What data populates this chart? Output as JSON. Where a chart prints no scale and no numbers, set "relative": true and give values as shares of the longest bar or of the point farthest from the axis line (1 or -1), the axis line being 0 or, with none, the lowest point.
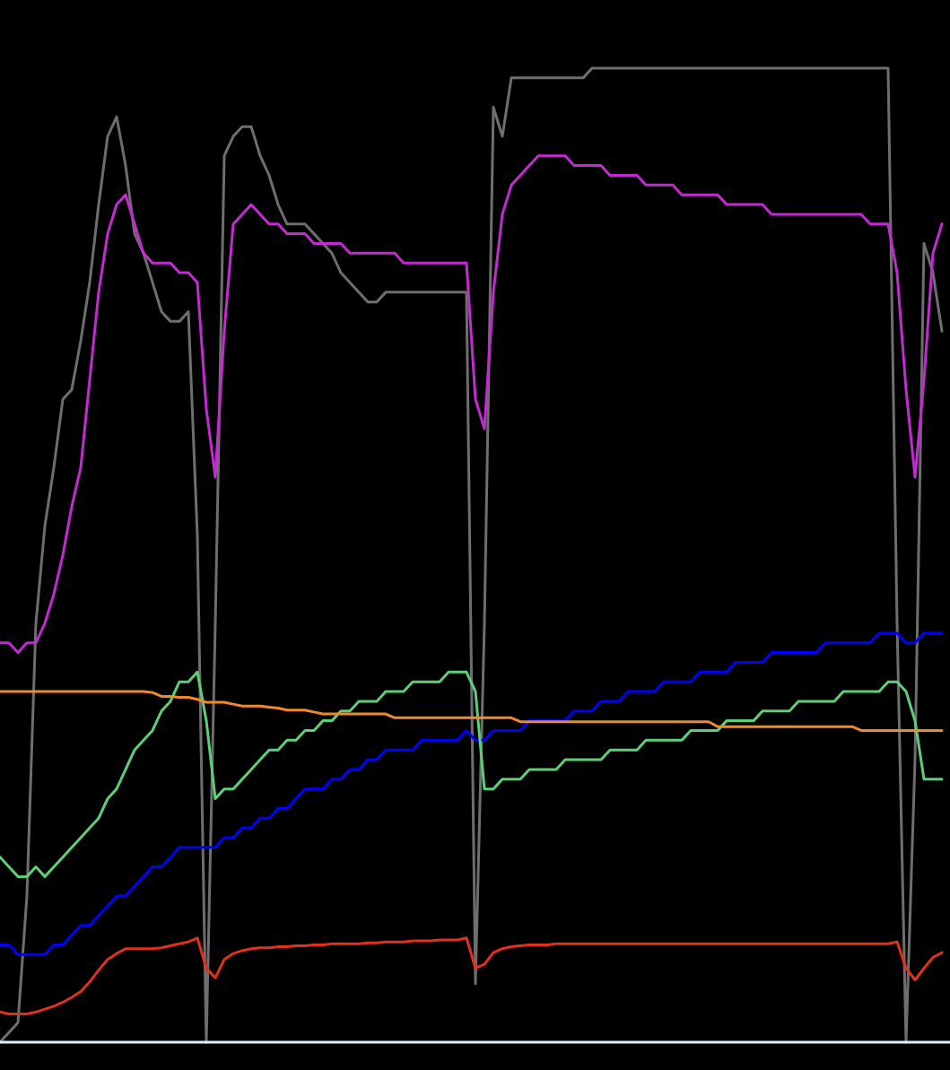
{
  "chart_data": {
    "type": "line",
    "relative": true,
    "categories": [
      null,
      null,
      null,
      null,
      null,
      null,
      null,
      null,
      null,
      null,
      null,
      null,
      null,
      null,
      null,
      null,
      null,
      null,
      null,
      null,
      null,
      null,
      null,
      null,
      null,
      null,
      null,
      null,
      null,
      null,
      null,
      null,
      null,
      null,
      null,
      null,
      null,
      null,
      null,
      null,
      null,
      null,
      null,
      null,
      null,
      null,
      null,
      null,
      null,
      null,
      null,
      null,
      null,
      null,
      null,
      null,
      null,
      null,
      null,
      null,
      null,
      null,
      null,
      null,
      null,
      null,
      null,
      null,
      null,
      null,
      null,
      null,
      null,
      null,
      null,
      null,
      null,
      null,
      null,
      null,
      null,
      null,
      null,
      null,
      null,
      null,
      null,
      null,
      null,
      null,
      null,
      null,
      null,
      null,
      null,
      null,
      null,
      null,
      null,
      null,
      null,
      null,
      null,
      null,
      null,
      null
    ],
    "series": [
      {
        "color": "#6e6e6e",
        "values": [
          0.0,
          0.01,
          0.02,
          0.15,
          0.43,
          0.53,
          0.59,
          0.66,
          0.67,
          0.72,
          0.78,
          0.86,
          0.93,
          0.95,
          0.9,
          0.83,
          0.81,
          0.78,
          0.75,
          0.74,
          0.74,
          0.75,
          0.52,
          0.0,
          0.43,
          0.91,
          0.93,
          0.94,
          0.94,
          0.91,
          0.89,
          0.86,
          0.84,
          0.84,
          0.84,
          0.83,
          0.82,
          0.81,
          0.79,
          0.78,
          0.77,
          0.76,
          0.76,
          0.77,
          0.77,
          0.77,
          0.77,
          0.77,
          0.77,
          0.77,
          0.77,
          0.77,
          0.77,
          0.06,
          0.43,
          0.96,
          0.93,
          0.99,
          0.99,
          0.99,
          0.99,
          0.99,
          0.99,
          0.99,
          0.99,
          0.99,
          1.0,
          1.0,
          1.0,
          1.0,
          1.0,
          1.0,
          1.0,
          1.0,
          1.0,
          1.0,
          1.0,
          1.0,
          1.0,
          1.0,
          1.0,
          1.0,
          1.0,
          1.0,
          1.0,
          1.0,
          1.0,
          1.0,
          1.0,
          1.0,
          1.0,
          1.0,
          1.0,
          1.0,
          1.0,
          1.0,
          1.0,
          1.0,
          1.0,
          1.0,
          0.43,
          0.0,
          0.29,
          0.82,
          0.79,
          0.73
        ]
      },
      {
        "color": "#c42ad2",
        "values": [
          0.41,
          0.41,
          0.4,
          0.41,
          0.41,
          0.43,
          0.46,
          0.5,
          0.55,
          0.59,
          0.68,
          0.77,
          0.83,
          0.86,
          0.87,
          0.84,
          0.81,
          0.8,
          0.8,
          0.8,
          0.79,
          0.79,
          0.78,
          0.65,
          0.58,
          0.73,
          0.84,
          0.85,
          0.86,
          0.85,
          0.84,
          0.84,
          0.83,
          0.83,
          0.83,
          0.82,
          0.82,
          0.82,
          0.82,
          0.81,
          0.81,
          0.81,
          0.81,
          0.81,
          0.81,
          0.8,
          0.8,
          0.8,
          0.8,
          0.8,
          0.8,
          0.8,
          0.8,
          0.66,
          0.63,
          0.77,
          0.85,
          0.88,
          0.89,
          0.9,
          0.91,
          0.91,
          0.91,
          0.91,
          0.9,
          0.9,
          0.9,
          0.9,
          0.89,
          0.89,
          0.89,
          0.89,
          0.88,
          0.88,
          0.88,
          0.88,
          0.87,
          0.87,
          0.87,
          0.87,
          0.87,
          0.86,
          0.86,
          0.86,
          0.86,
          0.86,
          0.85,
          0.85,
          0.85,
          0.85,
          0.85,
          0.85,
          0.85,
          0.85,
          0.85,
          0.85,
          0.85,
          0.84,
          0.84,
          0.84,
          0.79,
          0.67,
          0.58,
          0.68,
          0.81,
          0.84
        ]
      },
      {
        "color": "#0000ff",
        "values": [
          0.1,
          0.1,
          0.09,
          0.09,
          0.09,
          0.09,
          0.1,
          0.1,
          0.11,
          0.12,
          0.12,
          0.13,
          0.14,
          0.15,
          0.15,
          0.16,
          0.17,
          0.18,
          0.18,
          0.19,
          0.2,
          0.2,
          0.2,
          0.2,
          0.2,
          0.21,
          0.21,
          0.22,
          0.22,
          0.23,
          0.23,
          0.24,
          0.24,
          0.25,
          0.26,
          0.26,
          0.26,
          0.27,
          0.27,
          0.28,
          0.28,
          0.29,
          0.29,
          0.3,
          0.3,
          0.3,
          0.3,
          0.31,
          0.31,
          0.31,
          0.31,
          0.31,
          0.32,
          0.31,
          0.31,
          0.32,
          0.32,
          0.32,
          0.32,
          0.33,
          0.33,
          0.33,
          0.33,
          0.33,
          0.34,
          0.34,
          0.34,
          0.35,
          0.35,
          0.35,
          0.36,
          0.36,
          0.36,
          0.36,
          0.37,
          0.37,
          0.37,
          0.37,
          0.38,
          0.38,
          0.38,
          0.38,
          0.39,
          0.39,
          0.39,
          0.39,
          0.4,
          0.4,
          0.4,
          0.4,
          0.4,
          0.4,
          0.41,
          0.41,
          0.41,
          0.41,
          0.41,
          0.41,
          0.42,
          0.42,
          0.42,
          0.41,
          0.41,
          0.42,
          0.42,
          0.42
        ]
      },
      {
        "color": "#5ccf78",
        "values": [
          0.19,
          0.18,
          0.17,
          0.17,
          0.18,
          0.17,
          0.18,
          0.19,
          0.2,
          0.21,
          0.22,
          0.23,
          0.25,
          0.26,
          0.28,
          0.3,
          0.31,
          0.32,
          0.34,
          0.35,
          0.37,
          0.37,
          0.38,
          0.33,
          0.25,
          0.26,
          0.26,
          0.27,
          0.28,
          0.29,
          0.3,
          0.3,
          0.31,
          0.31,
          0.32,
          0.32,
          0.33,
          0.33,
          0.34,
          0.34,
          0.35,
          0.35,
          0.35,
          0.36,
          0.36,
          0.36,
          0.37,
          0.37,
          0.37,
          0.37,
          0.38,
          0.38,
          0.38,
          0.36,
          0.26,
          0.26,
          0.27,
          0.27,
          0.27,
          0.28,
          0.28,
          0.28,
          0.28,
          0.29,
          0.29,
          0.29,
          0.29,
          0.29,
          0.3,
          0.3,
          0.3,
          0.3,
          0.31,
          0.31,
          0.31,
          0.31,
          0.31,
          0.32,
          0.32,
          0.32,
          0.32,
          0.33,
          0.33,
          0.33,
          0.33,
          0.34,
          0.34,
          0.34,
          0.34,
          0.35,
          0.35,
          0.35,
          0.35,
          0.35,
          0.36,
          0.36,
          0.36,
          0.36,
          0.36,
          0.37,
          0.37,
          0.36,
          0.33,
          0.27,
          0.27,
          0.27
        ]
      },
      {
        "color": "#ee8a2c",
        "values": [
          0.36,
          0.36,
          0.36,
          0.36,
          0.36,
          0.36,
          0.36,
          0.36,
          0.36,
          0.36,
          0.36,
          0.36,
          0.36,
          0.36,
          0.36,
          0.36,
          0.36,
          0.359,
          0.355,
          0.355,
          0.354,
          0.354,
          0.352,
          0.349,
          0.349,
          0.349,
          0.347,
          0.345,
          0.345,
          0.345,
          0.344,
          0.343,
          0.341,
          0.341,
          0.341,
          0.339,
          0.337,
          0.337,
          0.337,
          0.337,
          0.337,
          0.337,
          0.337,
          0.337,
          0.333,
          0.333,
          0.333,
          0.333,
          0.333,
          0.333,
          0.333,
          0.333,
          0.333,
          0.333,
          0.333,
          0.333,
          0.333,
          0.333,
          0.329,
          0.329,
          0.329,
          0.329,
          0.329,
          0.329,
          0.329,
          0.329,
          0.329,
          0.329,
          0.329,
          0.329,
          0.329,
          0.329,
          0.329,
          0.329,
          0.329,
          0.329,
          0.329,
          0.329,
          0.329,
          0.329,
          0.324,
          0.324,
          0.324,
          0.324,
          0.324,
          0.324,
          0.324,
          0.324,
          0.324,
          0.324,
          0.324,
          0.324,
          0.324,
          0.324,
          0.324,
          0.324,
          0.32,
          0.32,
          0.32,
          0.32,
          0.32,
          0.32,
          0.32,
          0.32,
          0.32,
          0.32
        ]
      },
      {
        "color": "#e0301e",
        "values": [
          0.031,
          0.029,
          0.029,
          0.029,
          0.031,
          0.034,
          0.037,
          0.041,
          0.046,
          0.052,
          0.062,
          0.074,
          0.085,
          0.091,
          0.096,
          0.096,
          0.096,
          0.096,
          0.097,
          0.099,
          0.101,
          0.103,
          0.107,
          0.076,
          0.066,
          0.085,
          0.091,
          0.094,
          0.096,
          0.097,
          0.097,
          0.098,
          0.098,
          0.099,
          0.099,
          0.1,
          0.1,
          0.101,
          0.101,
          0.101,
          0.101,
          0.102,
          0.102,
          0.103,
          0.103,
          0.103,
          0.104,
          0.104,
          0.104,
          0.105,
          0.105,
          0.105,
          0.107,
          0.076,
          0.08,
          0.092,
          0.096,
          0.098,
          0.099,
          0.1,
          0.1,
          0.1,
          0.101,
          0.101,
          0.101,
          0.101,
          0.101,
          0.101,
          0.101,
          0.101,
          0.101,
          0.101,
          0.101,
          0.101,
          0.101,
          0.101,
          0.101,
          0.101,
          0.101,
          0.101,
          0.101,
          0.101,
          0.101,
          0.101,
          0.101,
          0.101,
          0.101,
          0.101,
          0.101,
          0.101,
          0.101,
          0.101,
          0.101,
          0.101,
          0.101,
          0.101,
          0.101,
          0.101,
          0.101,
          0.101,
          0.103,
          0.076,
          0.064,
          0.076,
          0.087,
          0.092
        ]
      }
    ]
  }
}
